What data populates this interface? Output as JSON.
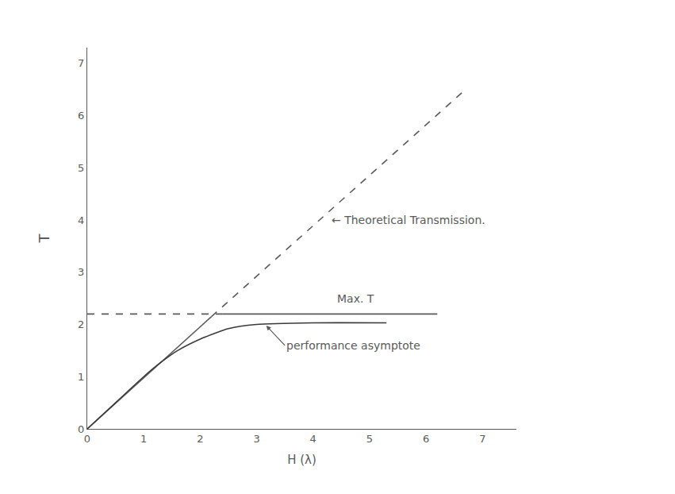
{
  "chart_data": {
    "type": "line",
    "x_label": "H (λ)",
    "y_label": "T",
    "xlim": [
      0,
      7.6
    ],
    "ylim": [
      0,
      7.3
    ],
    "xticks": [
      0,
      1,
      2,
      3,
      4,
      5,
      6,
      7
    ],
    "yticks": [
      0,
      1,
      2,
      3,
      4,
      5,
      6,
      7
    ],
    "grid": false,
    "color": "#5a5a5a",
    "series": [
      {
        "color": "#5a5a5a",
        "line_style": "solid",
        "x": [
          0,
          2.2
        ],
        "values": [
          0,
          2.15
        ]
      },
      {
        "color": "#5a5a5a",
        "line_style": "dashed",
        "x": [
          2.2,
          6.7
        ],
        "values": [
          2.15,
          6.5
        ]
      },
      {
        "color": "#5a5a5a",
        "line_style": "dashed",
        "x": [
          0,
          2.4
        ],
        "values": [
          2.2,
          2.2
        ]
      },
      {
        "color": "#5a5a5a",
        "line_style": "solid",
        "x": [
          2.4,
          6.2
        ],
        "values": [
          2.2,
          2.2
        ]
      },
      {
        "color": "#3a3a3a",
        "line_style": "solid",
        "x": [
          0,
          0.5,
          1,
          1.3,
          1.6,
          2,
          2.5,
          3,
          4,
          5.3
        ],
        "values": [
          0,
          0.5,
          1,
          1.27,
          1.5,
          1.72,
          1.92,
          2.0,
          2.03,
          2.03
        ]
      }
    ],
    "annotations": [
      {
        "text": "← Theoretical Transmission.",
        "x": 4.3,
        "y": 4.0
      },
      {
        "text": "Max. T",
        "x": 4.4,
        "y": 2.5
      },
      {
        "text": "performance asymptote",
        "x": 3.5,
        "y": 1.6,
        "arrow_x": 3.15,
        "arrow_y": 2.0
      }
    ]
  }
}
